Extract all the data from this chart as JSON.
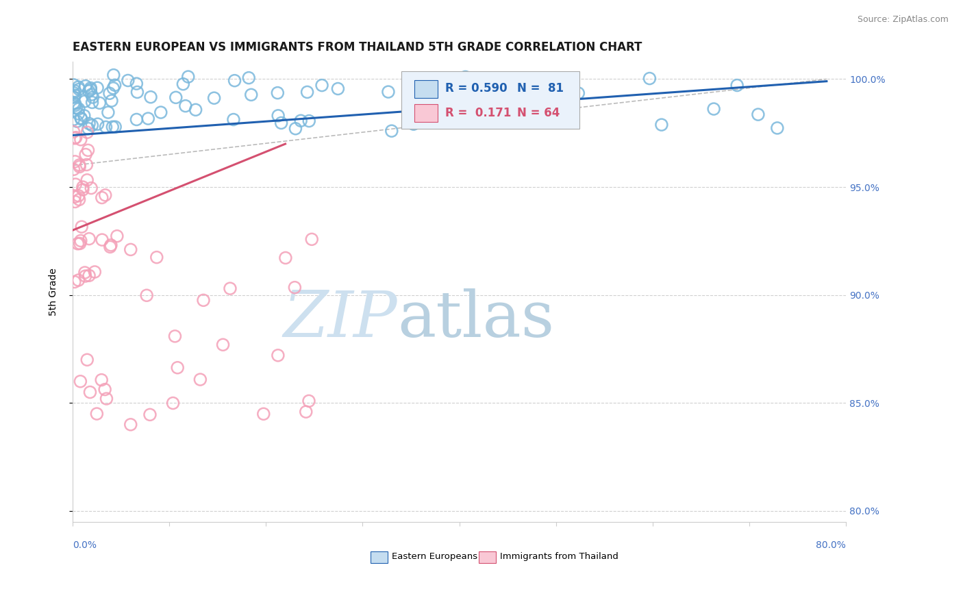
{
  "title": "EASTERN EUROPEAN VS IMMIGRANTS FROM THAILAND 5TH GRADE CORRELATION CHART",
  "source": "Source: ZipAtlas.com",
  "ylabel": "5th Grade",
  "x_lim": [
    0.0,
    0.8
  ],
  "y_lim": [
    0.795,
    1.008
  ],
  "y_tick_vals": [
    1.0,
    0.95,
    0.9,
    0.85,
    0.8
  ],
  "y_tick_labels": [
    "100.0%",
    "95.0%",
    "90.0%",
    "85.0%",
    "80.0%"
  ],
  "blue_color": "#7ab8dc",
  "pink_color": "#f4a0b8",
  "blue_line_color": "#2060b0",
  "pink_line_color": "#d45070",
  "dashed_color": "#bbbbbb",
  "blue_line_x": [
    0.0,
    0.78
  ],
  "blue_line_y": [
    0.974,
    0.999
  ],
  "pink_line_x": [
    0.0,
    0.22
  ],
  "pink_line_y": [
    0.93,
    0.97
  ],
  "dash_line_x": [
    0.0,
    0.78
  ],
  "dash_line_y": [
    0.96,
    1.0
  ],
  "legend_r1": "R = 0.590",
  "legend_n1": "N =  81",
  "legend_r2": "R =  0.171",
  "legend_n2": "N = 64",
  "legend_blue_fill": "#c5ddf0",
  "legend_pink_fill": "#f9c8d5",
  "watermark_zip_color": "#cde0ef",
  "watermark_atlas_color": "#b8d0e0",
  "title_fontsize": 12,
  "source_fontsize": 9,
  "tick_label_color": "#4472c4",
  "grid_color": "#d0d0d0"
}
